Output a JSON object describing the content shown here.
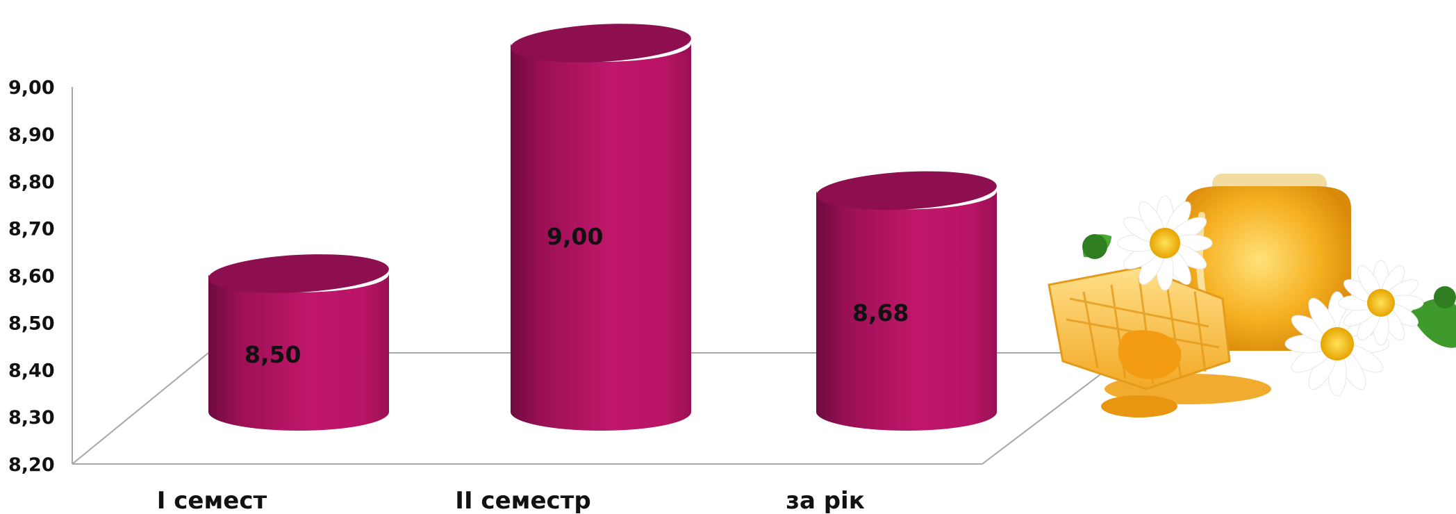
{
  "chart_data": {
    "type": "bar",
    "style": "3d-cylinder",
    "categories": [
      "I семест",
      "II семестр",
      "за рік"
    ],
    "values": [
      8.5,
      9.0,
      8.68
    ],
    "data_labels": [
      "8,50",
      "9,00",
      "8,68"
    ],
    "y_ticks": [
      "8,20",
      "8,30",
      "8,40",
      "8,50",
      "8,60",
      "8,70",
      "8,80",
      "8,90",
      "9,00"
    ],
    "ylim": [
      8.2,
      9.0
    ],
    "grid": false,
    "legend": "none",
    "title": "",
    "xlabel": "",
    "ylabel": ""
  },
  "colors": {
    "bar": "#be1467",
    "bar_dark": "#7a0c44",
    "bar_top": "#8e0f4f",
    "axis": "#a6a6a6"
  },
  "decoration": {
    "illustration": "honey-jar-honeycomb-daisies-icon"
  }
}
